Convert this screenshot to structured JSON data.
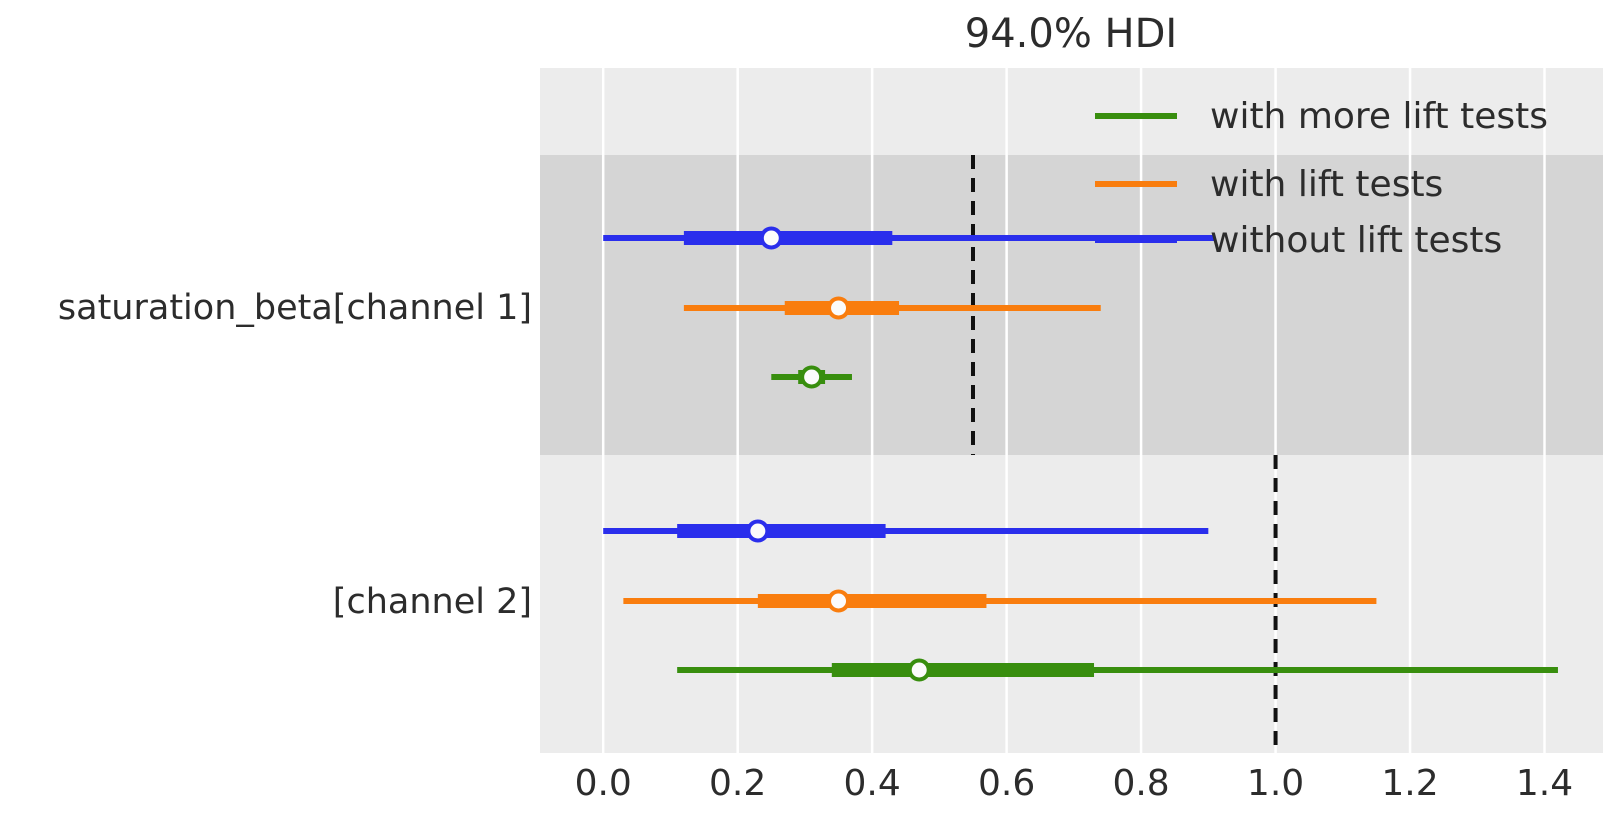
{
  "chart_data": {
    "type": "forest",
    "title": "94.0% HDI",
    "xlabel": "",
    "ylabel": "",
    "xlim": [
      -0.094,
      1.487
    ],
    "xticks": [
      "0.0",
      "0.2",
      "0.4",
      "0.6",
      "0.8",
      "1.0",
      "1.2",
      "1.4"
    ],
    "xtick_values": [
      0.0,
      0.2,
      0.4,
      0.6,
      0.8,
      1.0,
      1.2,
      1.4
    ],
    "grid": "vertical-white-on-gray",
    "legend_position": "upper-right-inside",
    "colors": {
      "plot_background": "#ececec",
      "shaded_band": "#d5d5d5",
      "gridline": "#ffffff",
      "text": "#2c2c2c",
      "reference_line": "#111111",
      "marker_fill": "#fbfbfb",
      "blue": "#2a2eec",
      "orange": "#f97d0e",
      "green": "#388e0e"
    },
    "legend": [
      {
        "label": "with more lift tests",
        "color": "#388e0e"
      },
      {
        "label": "with lift tests",
        "color": "#f97d0e"
      },
      {
        "label": "without lift tests",
        "color": "#2a2eec"
      }
    ],
    "rows": [
      {
        "label": "saturation_beta[channel 1]",
        "shaded": true,
        "reference_value": 0.55,
        "intervals": [
          {
            "series": "without lift tests",
            "color": "#2a2eec",
            "hdi": [
              0.0,
              0.91
            ],
            "quartile": [
              0.12,
              0.43
            ],
            "median": 0.25
          },
          {
            "series": "with lift tests",
            "color": "#f97d0e",
            "hdi": [
              0.12,
              0.74
            ],
            "quartile": [
              0.27,
              0.44
            ],
            "median": 0.35
          },
          {
            "series": "with more lift tests",
            "color": "#388e0e",
            "hdi": [
              0.25,
              0.37
            ],
            "quartile": [
              0.29,
              0.33
            ],
            "median": 0.31
          }
        ]
      },
      {
        "label": "[channel 2]",
        "shaded": false,
        "reference_value": 1.0,
        "intervals": [
          {
            "series": "without lift tests",
            "color": "#2a2eec",
            "hdi": [
              0.0,
              0.9
            ],
            "quartile": [
              0.11,
              0.42
            ],
            "median": 0.23
          },
          {
            "series": "with lift tests",
            "color": "#f97d0e",
            "hdi": [
              0.03,
              1.15
            ],
            "quartile": [
              0.23,
              0.57
            ],
            "median": 0.35
          },
          {
            "series": "with more lift tests",
            "color": "#388e0e",
            "hdi": [
              0.11,
              1.42
            ],
            "quartile": [
              0.34,
              0.73
            ],
            "median": 0.47
          }
        ]
      }
    ]
  }
}
